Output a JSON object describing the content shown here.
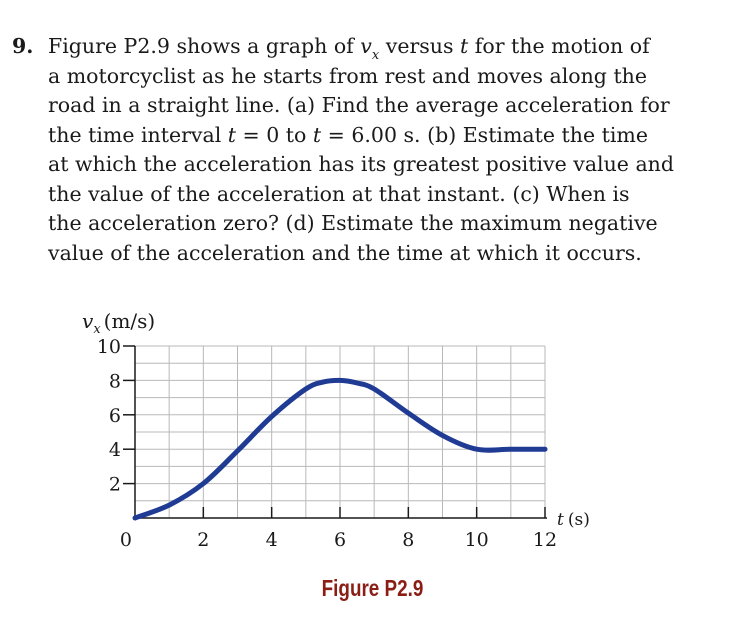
{
  "problem": {
    "number": "9.",
    "line1_pre": "Figure P2.9 shows a graph of ",
    "v_symbol": "v",
    "v_subscript": "x",
    "line1_mid": " versus ",
    "t_symbol": "t",
    "line1_post": " for the motion of",
    "line2": "a motorcyclist as he starts from rest and moves along the",
    "line3": "road in a straight line. (a) Find the average acceleration for",
    "line4_pre": "the time interval ",
    "line4_eq1": " = 0 to ",
    "line4_eq2": " = 6.00 s. (b) Estimate the time",
    "line5": "at which the acceleration has its greatest positive value and",
    "line6": "the value of the acceleration at that instant. (c) When is",
    "line7": "the acceleration zero? (d) Estimate the maximum negative",
    "line8": "value of the acceleration and the time at which it occurs."
  },
  "figure": {
    "caption": "Figure P2.9"
  },
  "chart_data": {
    "type": "line",
    "title": "",
    "ylabel_symbol": "v",
    "ylabel_subscript": "x",
    "ylabel_unit": "(m/s)",
    "xlabel_symbol": "t",
    "xlabel_unit": "(s)",
    "xlim": [
      0,
      12
    ],
    "ylim": [
      0,
      10
    ],
    "xticks": [
      "0",
      "2",
      "4",
      "6",
      "8",
      "10",
      "12"
    ],
    "yticks": [
      "2",
      "4",
      "6",
      "8",
      "10"
    ],
    "grid": true,
    "line_color": "#1f3b94",
    "series": [
      {
        "x": [
          0,
          1,
          2,
          3,
          4,
          5,
          5.5,
          6,
          6.5,
          7,
          8,
          9,
          10,
          11,
          12
        ],
        "y": [
          0,
          0.75,
          2.0,
          3.9,
          5.9,
          7.5,
          7.9,
          8.0,
          7.85,
          7.5,
          6.1,
          4.8,
          4.0,
          4.0,
          4.0
        ]
      }
    ]
  }
}
